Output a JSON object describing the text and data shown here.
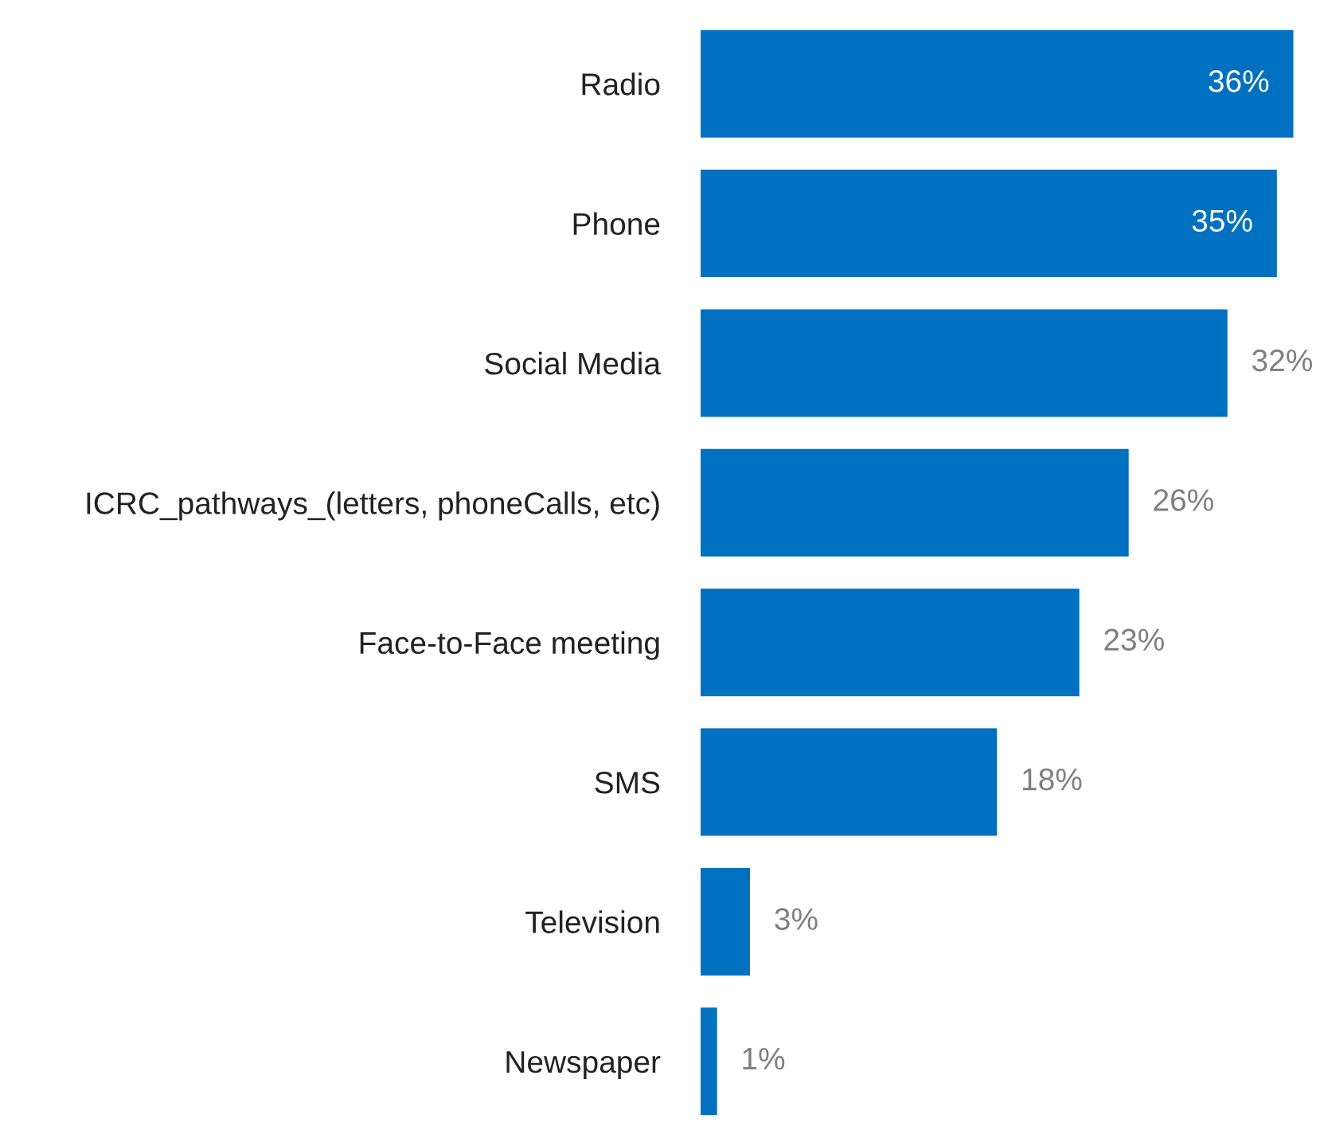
{
  "chart_data": {
    "type": "bar",
    "orientation": "horizontal",
    "categories": [
      "Radio",
      "Phone",
      "Social Media",
      "ICRC_pathways_(letters, phoneCalls, etc)",
      "Face-to-Face meeting",
      "SMS",
      "Television",
      "Newspaper"
    ],
    "values": [
      36,
      35,
      32,
      26,
      23,
      18,
      3,
      1
    ],
    "value_labels": [
      "36%",
      "35%",
      "32%",
      "26%",
      "23%",
      "18%",
      "3%",
      "1%"
    ],
    "color": "#0070c0"
  }
}
